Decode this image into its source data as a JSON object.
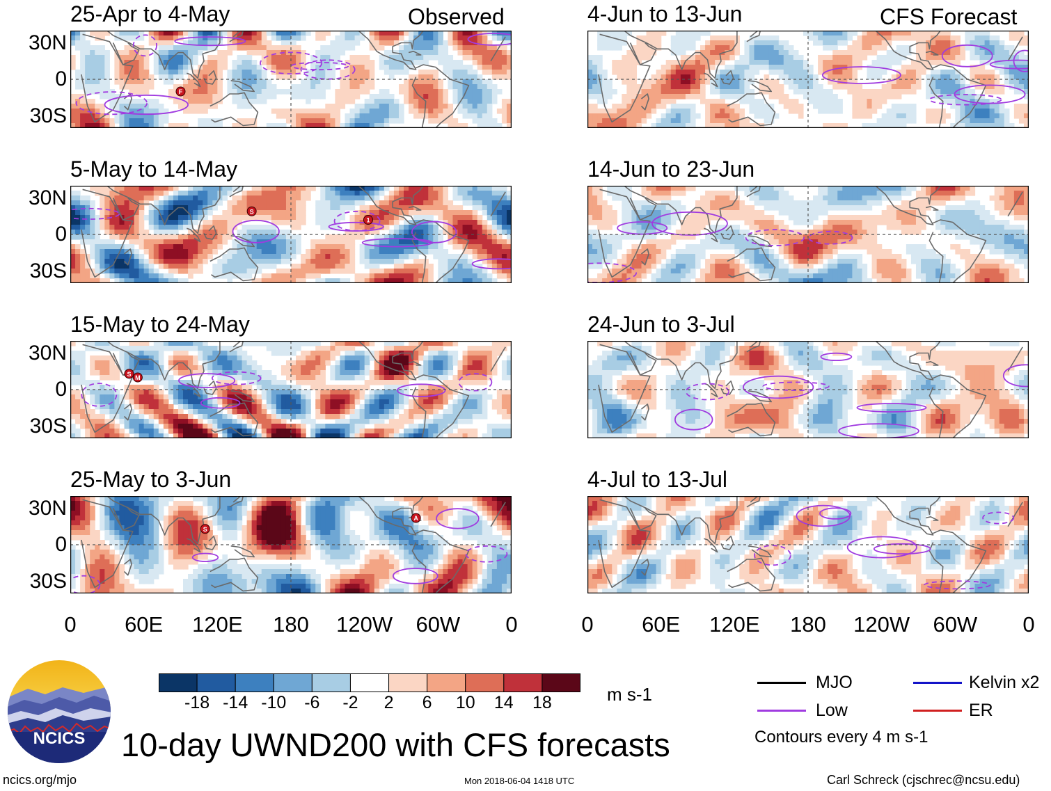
{
  "chart_data": {
    "type": "heatmap",
    "title": "10-day UWND200 with CFS forecasts",
    "variable": "UWND200",
    "units": "m s-1",
    "columns": [
      {
        "header": "Observed",
        "panels": [
          {
            "period": "25-Apr to 4-May",
            "storm_markers": [
              "F"
            ]
          },
          {
            "period": "5-May to 14-May",
            "storm_markers": [
              "S",
              "1"
            ]
          },
          {
            "period": "15-May to 24-May",
            "storm_markers": [
              "S",
              "M"
            ]
          },
          {
            "period": "25-May to 3-Jun",
            "storm_markers": [
              "S",
              "A"
            ]
          }
        ]
      },
      {
        "header": "CFS Forecast",
        "panels": [
          {
            "period": "4-Jun to 13-Jun",
            "storm_markers": []
          },
          {
            "period": "14-Jun to 23-Jun",
            "storm_markers": []
          },
          {
            "period": "24-Jun to 3-Jul",
            "storm_markers": []
          },
          {
            "period": "4-Jul to 13-Jul",
            "storm_markers": []
          }
        ]
      }
    ],
    "x_axis": {
      "ticks": [
        "0",
        "60E",
        "120E",
        "180",
        "120W",
        "60W",
        "0"
      ],
      "range": [
        0,
        360
      ]
    },
    "y_axis": {
      "ticks": [
        "30N",
        "0",
        "30S"
      ],
      "range": [
        -40,
        40
      ]
    },
    "colorbar": {
      "levels": [
        "-18",
        "-14",
        "-10",
        "-6",
        "-2",
        "2",
        "6",
        "10",
        "14",
        "18"
      ],
      "colors": [
        "#0b3566",
        "#215ba0",
        "#3d80bf",
        "#6fa7d4",
        "#a8cde4",
        "#d8e8f2",
        "#ffffff",
        "#fbd6c4",
        "#f3a585",
        "#de6e57",
        "#c0313a",
        "#8e0f24",
        "#5b0718"
      ],
      "units": "m s-1"
    },
    "legend": [
      {
        "label": "MJO",
        "color": "#000000"
      },
      {
        "label": "Kelvin x2",
        "color": "#1414c8"
      },
      {
        "label": "Low",
        "color": "#a03be0"
      },
      {
        "label": "ER",
        "color": "#d02020"
      }
    ],
    "contour_note": "Contours every 4 m s-1"
  },
  "footer": {
    "site": "ncics.org/mjo",
    "timestamp": "Mon 2018-06-04 1418 UTC",
    "author": "Carl Schreck (cjschrec@ncsu.edu)",
    "logo_text": "NCICS"
  }
}
